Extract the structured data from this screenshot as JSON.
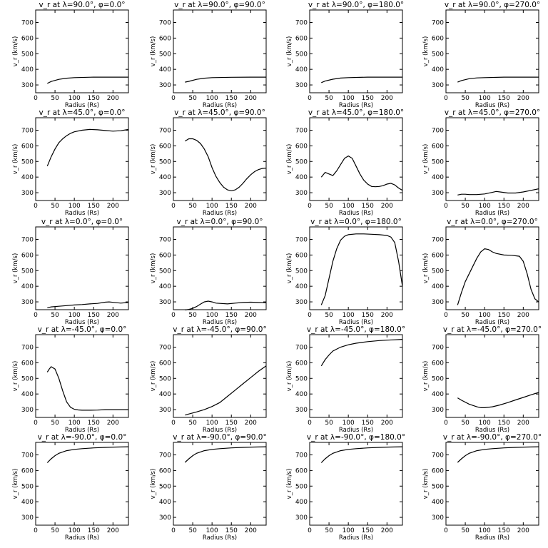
{
  "figure": {
    "xlabel": "Radius (Rs)",
    "ylabel": "v_r (km/s)",
    "xlim": [
      0,
      240
    ],
    "ylim": [
      250,
      780
    ],
    "xticks": [
      0,
      50,
      100,
      150,
      200
    ],
    "yticks": [
      300,
      400,
      500,
      600,
      700
    ]
  },
  "chart_data": [
    {
      "type": "line",
      "title": "v_r at λ=90.0°, φ=0.0°",
      "x": [
        30,
        40,
        60,
        80,
        100,
        150,
        200,
        240
      ],
      "y": [
        310,
        322,
        336,
        343,
        347,
        350,
        350,
        350
      ]
    },
    {
      "type": "line",
      "title": "v_r at λ=90.0°, φ=90.0°",
      "x": [
        30,
        40,
        60,
        80,
        100,
        150,
        200,
        240
      ],
      "y": [
        318,
        323,
        336,
        343,
        347,
        349,
        350,
        350
      ]
    },
    {
      "type": "line",
      "title": "v_r at λ=90.0°, φ=180.0°",
      "x": [
        30,
        40,
        60,
        80,
        100,
        150,
        200,
        240
      ],
      "y": [
        315,
        325,
        337,
        344,
        347,
        350,
        350,
        350
      ]
    },
    {
      "type": "line",
      "title": "v_r at λ=90.0°, φ=270.0°",
      "x": [
        30,
        40,
        60,
        80,
        100,
        150,
        200,
        240
      ],
      "y": [
        318,
        328,
        340,
        345,
        347,
        350,
        350,
        350
      ]
    },
    {
      "type": "line",
      "title": "v_r at λ=45.0°, φ=0.0°",
      "x": [
        30,
        40,
        50,
        60,
        70,
        80,
        90,
        100,
        120,
        140,
        160,
        180,
        200,
        220,
        240
      ],
      "y": [
        470,
        530,
        580,
        620,
        645,
        665,
        680,
        690,
        700,
        705,
        703,
        698,
        694,
        697,
        705
      ]
    },
    {
      "type": "line",
      "title": "v_r at λ=45.0°, φ=90.0°",
      "x": [
        30,
        40,
        50,
        60,
        70,
        80,
        90,
        100,
        110,
        120,
        130,
        140,
        150,
        160,
        170,
        180,
        190,
        200,
        210,
        220,
        230,
        240
      ],
      "y": [
        630,
        645,
        645,
        635,
        615,
        580,
        530,
        460,
        405,
        365,
        335,
        318,
        312,
        318,
        335,
        360,
        390,
        415,
        435,
        448,
        455,
        457
      ]
    },
    {
      "type": "line",
      "title": "v_r at λ=45.0°, φ=180.0°",
      "x": [
        30,
        40,
        50,
        60,
        70,
        80,
        90,
        100,
        110,
        120,
        130,
        140,
        150,
        160,
        170,
        180,
        190,
        200,
        210,
        220,
        230,
        240
      ],
      "y": [
        400,
        430,
        420,
        410,
        440,
        480,
        520,
        535,
        520,
        470,
        420,
        380,
        355,
        340,
        338,
        340,
        345,
        355,
        360,
        350,
        330,
        315
      ]
    },
    {
      "type": "line",
      "title": "v_r at λ=45.0°, φ=270.0°",
      "x": [
        30,
        40,
        50,
        60,
        80,
        100,
        120,
        130,
        140,
        160,
        180,
        200,
        220,
        240
      ],
      "y": [
        285,
        290,
        290,
        288,
        288,
        292,
        302,
        308,
        305,
        298,
        298,
        305,
        315,
        325
      ]
    },
    {
      "type": "line",
      "title": "v_r at λ=0.0°, φ=0.0°",
      "x": [
        30,
        40,
        60,
        80,
        100,
        120,
        140,
        160,
        180,
        190,
        200,
        220,
        240
      ],
      "y": [
        262,
        268,
        272,
        276,
        280,
        283,
        287,
        290,
        298,
        300,
        297,
        292,
        296
      ]
    },
    {
      "type": "line",
      "title": "v_r at λ=0.0°, φ=90.0°",
      "x": [
        30,
        40,
        50,
        60,
        70,
        80,
        90,
        100,
        110,
        120,
        140,
        160,
        180,
        200,
        220,
        240
      ],
      "y": [
        248,
        252,
        258,
        270,
        285,
        300,
        305,
        300,
        292,
        290,
        287,
        292,
        296,
        298,
        296,
        295
      ]
    },
    {
      "type": "line",
      "title": "v_r at λ=0.0°, φ=180.0°",
      "x": [
        30,
        40,
        50,
        60,
        70,
        80,
        90,
        100,
        120,
        140,
        160,
        180,
        200,
        210,
        220,
        230,
        240
      ],
      "y": [
        280,
        340,
        450,
        560,
        640,
        695,
        720,
        730,
        735,
        735,
        733,
        730,
        725,
        715,
        680,
        560,
        400
      ]
    },
    {
      "type": "line",
      "title": "v_r at λ=0.0°, φ=270.0°",
      "x": [
        30,
        40,
        50,
        60,
        70,
        80,
        90,
        100,
        110,
        120,
        130,
        150,
        170,
        190,
        200,
        210,
        220,
        230,
        240
      ],
      "y": [
        280,
        360,
        430,
        480,
        530,
        580,
        620,
        640,
        635,
        620,
        610,
        600,
        598,
        592,
        560,
        480,
        380,
        320,
        300
      ]
    },
    {
      "type": "line",
      "title": "v_r at λ=-45.0°, φ=0.0°",
      "x": [
        30,
        35,
        40,
        50,
        60,
        70,
        80,
        90,
        100,
        110,
        120,
        140,
        160,
        180,
        200,
        240
      ],
      "y": [
        540,
        560,
        575,
        560,
        500,
        420,
        350,
        315,
        302,
        298,
        296,
        296,
        297,
        300,
        300,
        300
      ]
    },
    {
      "type": "line",
      "title": "v_r at λ=-45.0°, φ=90.0°",
      "x": [
        30,
        40,
        60,
        80,
        100,
        120,
        140,
        160,
        180,
        200,
        220,
        240
      ],
      "y": [
        265,
        272,
        285,
        300,
        320,
        345,
        385,
        425,
        465,
        505,
        545,
        580
      ]
    },
    {
      "type": "line",
      "title": "v_r at λ=-45.0°, φ=180.0°",
      "x": [
        30,
        40,
        50,
        60,
        80,
        100,
        120,
        150,
        180,
        200,
        220,
        240
      ],
      "y": [
        580,
        620,
        650,
        675,
        700,
        715,
        725,
        735,
        742,
        745,
        747,
        750
      ]
    },
    {
      "type": "line",
      "title": "v_r at λ=-45.0°, φ=270.0°",
      "x": [
        30,
        40,
        60,
        80,
        90,
        100,
        120,
        140,
        160,
        180,
        200,
        220,
        240
      ],
      "y": [
        375,
        360,
        335,
        318,
        312,
        312,
        318,
        330,
        345,
        362,
        378,
        395,
        410
      ]
    },
    {
      "type": "line",
      "title": "v_r at λ=-90.0°, φ=0.0°",
      "x": [
        30,
        40,
        50,
        60,
        80,
        100,
        120,
        150,
        180,
        200,
        240
      ],
      "y": [
        650,
        675,
        695,
        710,
        727,
        735,
        740,
        745,
        748,
        750,
        752
      ]
    },
    {
      "type": "line",
      "title": "v_r at λ=-90.0°, φ=90.0°",
      "x": [
        30,
        40,
        50,
        60,
        80,
        100,
        120,
        150,
        180,
        200,
        240
      ],
      "y": [
        652,
        675,
        695,
        710,
        727,
        735,
        740,
        745,
        748,
        750,
        752
      ]
    },
    {
      "type": "line",
      "title": "v_r at λ=-90.0°, φ=180.0°",
      "x": [
        30,
        40,
        50,
        60,
        80,
        100,
        120,
        150,
        180,
        200,
        240
      ],
      "y": [
        650,
        675,
        695,
        710,
        727,
        735,
        740,
        745,
        748,
        750,
        752
      ]
    },
    {
      "type": "line",
      "title": "v_r at λ=-90.0°, φ=270.0°",
      "x": [
        30,
        40,
        50,
        60,
        80,
        100,
        120,
        150,
        180,
        200,
        240
      ],
      "y": [
        652,
        675,
        695,
        710,
        727,
        735,
        740,
        745,
        748,
        750,
        752
      ]
    }
  ]
}
